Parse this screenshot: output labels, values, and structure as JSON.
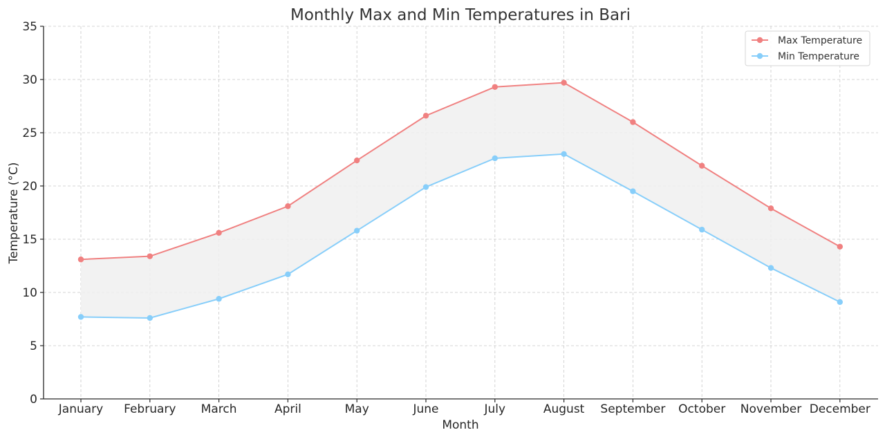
{
  "chart_data": {
    "type": "line",
    "title": "Monthly Max and Min Temperatures in Bari",
    "xlabel": "Month",
    "ylabel": "Temperature (°C)",
    "categories": [
      "January",
      "February",
      "March",
      "April",
      "May",
      "June",
      "July",
      "August",
      "September",
      "October",
      "November",
      "December"
    ],
    "ylim": [
      0,
      35
    ],
    "yticks": [
      0,
      5,
      10,
      15,
      20,
      25,
      30,
      35
    ],
    "grid": true,
    "legend_position": "top-right",
    "fill_between": true,
    "fill_color": "#f0f0f0",
    "series": [
      {
        "name": "Max Temperature",
        "color": "#f08080",
        "values": [
          13.1,
          13.4,
          15.6,
          18.1,
          22.4,
          26.6,
          29.3,
          29.7,
          26.0,
          21.9,
          17.9,
          14.3
        ]
      },
      {
        "name": "Min Temperature",
        "color": "#87cefa",
        "values": [
          7.7,
          7.6,
          9.4,
          11.7,
          15.8,
          19.9,
          22.6,
          23.0,
          19.5,
          15.9,
          12.3,
          9.1
        ]
      }
    ]
  }
}
